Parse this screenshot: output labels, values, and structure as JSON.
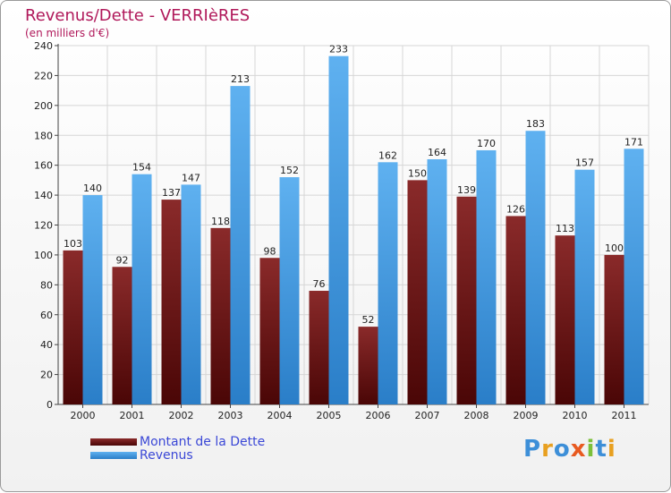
{
  "chart_data": {
    "type": "bar",
    "title": "Revenus/Dette - VERRIèRES",
    "subtitle": "(en milliers d'€)",
    "categories": [
      "2000",
      "2001",
      "2002",
      "2003",
      "2004",
      "2005",
      "2006",
      "2007",
      "2008",
      "2009",
      "2010",
      "2011"
    ],
    "series": [
      {
        "name": "Montant de la Dette",
        "color": "#7a1a1a",
        "values": [
          103,
          92,
          137,
          118,
          98,
          76,
          52,
          150,
          139,
          126,
          113,
          100
        ]
      },
      {
        "name": "Revenus",
        "color": "#3d9be6",
        "values": [
          140,
          154,
          147,
          213,
          152,
          233,
          162,
          164,
          170,
          183,
          157,
          171
        ]
      }
    ],
    "ylim": [
      0,
      240
    ],
    "yticks": [
      0,
      20,
      40,
      60,
      80,
      100,
      120,
      140,
      160,
      180,
      200,
      220,
      240
    ],
    "grid": true,
    "legend": "bottom-left"
  },
  "brand": {
    "logo_text": "Proxiti",
    "logo_letters": [
      {
        "ch": "P",
        "color": "#3d8fd8"
      },
      {
        "ch": "r",
        "color": "#e8a020"
      },
      {
        "ch": "o",
        "color": "#3d8fd8"
      },
      {
        "ch": "x",
        "color": "#e85a20"
      },
      {
        "ch": "i",
        "color": "#7cc03a"
      },
      {
        "ch": "t",
        "color": "#3d8fd8"
      },
      {
        "ch": "i",
        "color": "#e8a020"
      }
    ]
  }
}
